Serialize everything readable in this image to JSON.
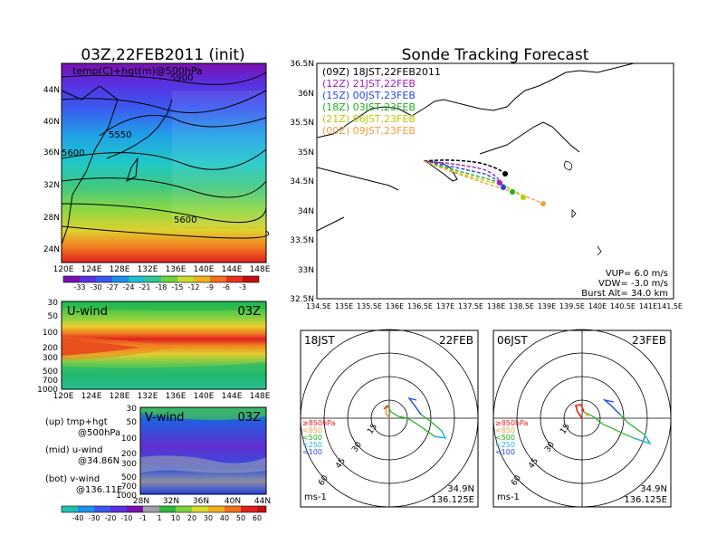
{
  "left": {
    "title": "03Z,22FEB2011 (init)",
    "upper_panel": {
      "label": "temp(C)+hgt(m)@500hPa",
      "lat_labels": [
        "44N",
        "40N",
        "36N",
        "32N",
        "28N",
        "24N"
      ],
      "lon_labels": [
        "120E",
        "124E",
        "128E",
        "132E",
        "136E",
        "140E",
        "144E",
        "148E"
      ],
      "contour_labels": [
        "5900",
        "5550",
        "5600",
        "5600"
      ],
      "colorbar_labels": [
        "-33",
        "-30",
        "-27",
        "-24",
        "-21",
        "-18",
        "-15",
        "-12",
        "-9",
        "-6",
        "-3"
      ]
    },
    "mid_panel": {
      "label": "U-wind",
      "time": "03Z",
      "levels": [
        "30",
        "50",
        "100",
        "200",
        "300",
        "500",
        "700",
        "1000"
      ],
      "lon_labels": [
        "120E",
        "124E",
        "128E",
        "132E",
        "136E",
        "140E",
        "144E",
        "148E"
      ]
    },
    "bottom_panel": {
      "label": "V-wind",
      "time": "03Z",
      "levels": [
        "30",
        "50",
        "100",
        "200",
        "300",
        "500",
        "700",
        "1000"
      ],
      "lat_labels": [
        "28N",
        "32N",
        "36N",
        "40N",
        "44N"
      ],
      "colorbar_labels": [
        "-40",
        "-30",
        "-20",
        "-10",
        "-1",
        "1",
        "10",
        "20",
        "30",
        "40",
        "50",
        "60"
      ]
    },
    "legend": {
      "up": [
        "(up) tmp+hgt",
        "@500hPa"
      ],
      "mid": [
        "(mid) u-wind",
        "@34.86N"
      ],
      "bot": [
        "(bot) v-wind",
        "@136.11E"
      ]
    }
  },
  "right": {
    "title": "Sonde Tracking Forecast",
    "map": {
      "lat_labels": [
        "36.5N",
        "36N",
        "35.5N",
        "35N",
        "34.5N",
        "34N",
        "33.5N",
        "33N",
        "32.5N"
      ],
      "lon_labels": [
        "134.5E",
        "135E",
        "135.5E",
        "136E",
        "136.5E",
        "137E",
        "137.5E",
        "138E",
        "138.5E",
        "139E",
        "139.5E",
        "140E",
        "140.5E",
        "141E",
        "141.5E"
      ],
      "legend": [
        {
          "label": "(09Z)  18JST,22FEB2011",
          "color": "#000000"
        },
        {
          "label": "(12Z)  21JST,22FEB",
          "color": "#a020c0"
        },
        {
          "label": "(15Z)  00JST,23FEB",
          "color": "#2848e0"
        },
        {
          "label": "(18Z)  03JST,23FEB",
          "color": "#20b020"
        },
        {
          "label": "(21Z)  06JST,23FEB",
          "color": "#c0c800"
        },
        {
          "label": "(00Z)  09JST,23FEB",
          "color": "#f0a040"
        }
      ],
      "params": [
        "VUP=  6.0  m/s",
        "VDW= -3.0  m/s",
        "Burst Alt=  34.0  km"
      ]
    },
    "polar_left": {
      "time": "18JST",
      "date": "22FEB",
      "ring_labels": [
        "15",
        "30",
        "45",
        "60"
      ],
      "levels": [
        "≥850hPa",
        "<850",
        "<500",
        "<250",
        "<100"
      ],
      "units": "ms-1",
      "coords": [
        "34.9N",
        "136.125E"
      ]
    },
    "polar_right": {
      "time": "06JST",
      "date": "23FEB",
      "ring_labels": [
        "15",
        "30",
        "45",
        "60"
      ],
      "levels": [
        "≥850hPa",
        "<850",
        "<500",
        "<250",
        "<100"
      ],
      "units": "ms-1",
      "coords": [
        "34.9N",
        "136.125E"
      ]
    },
    "level_colors": [
      "#e02020",
      "#f0a040",
      "#20b020",
      "#20b0e0",
      "#2848e0"
    ]
  },
  "colors": {
    "temp_scale": [
      "#7a10b0",
      "#6a2ae0",
      "#3c50f0",
      "#2090e8",
      "#20c0d0",
      "#30c890",
      "#70d040",
      "#c8dc30",
      "#f0b020",
      "#f07020",
      "#e83020",
      "#c01010"
    ]
  }
}
